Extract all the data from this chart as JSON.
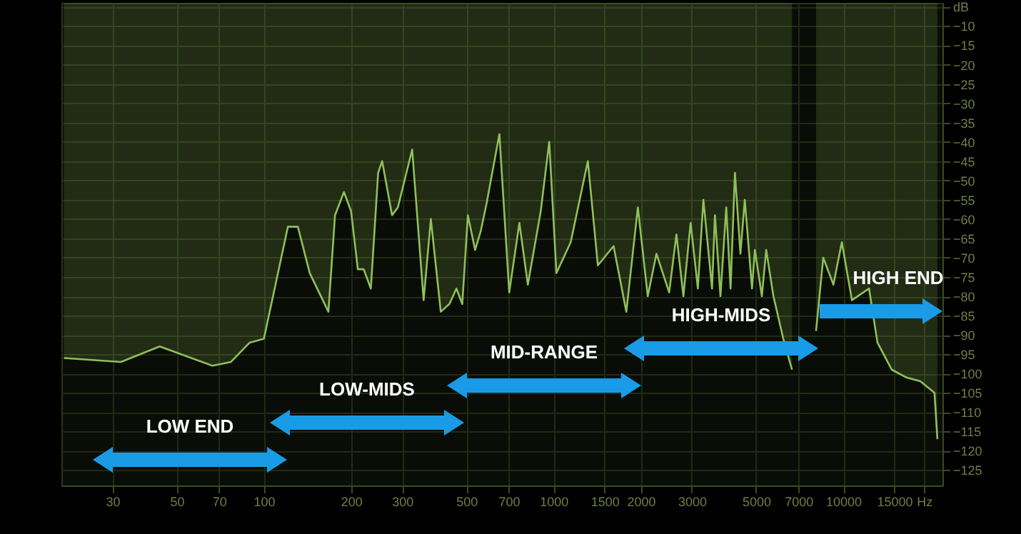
{
  "chart_data": {
    "type": "area",
    "x": [
      20.4,
      32.1,
      43.7,
      66.5,
      77,
      89.3,
      100,
      121,
      131,
      144,
      167,
      176,
      189,
      200,
      211,
      221,
      234,
      248,
      256,
      277,
      290,
      325,
      356,
      377,
      408,
      437,
      462,
      484,
      506,
      536,
      561,
      587,
      650,
      703,
      762,
      815,
      903,
      966,
      1023,
      1146,
      1313,
      1422,
      1611,
      1783,
      1954,
      2114,
      2265,
      2506,
      2655,
      2806,
      2972,
      3148,
      3289,
      3524,
      3606,
      3767,
      3945,
      4083,
      4227,
      4416,
      4571,
      4842,
      4955,
      5236,
      5420,
      5741,
      6209,
      6653,
      6950,
      8054,
      8531,
      9247,
      9886,
      10715,
      12274,
      13125,
      14700,
      16480,
      18450,
      20650,
      21130
    ],
    "series": [
      {
        "color": "#8fbf5a",
        "values": [
          -96,
          -97,
          -93,
          -98,
          -97,
          -92,
          -91,
          -62,
          -62,
          -74,
          -84,
          -59,
          -53,
          -58,
          -73,
          -73,
          -78,
          -48,
          -45,
          -59,
          -57,
          -42,
          -81,
          -60,
          -84,
          -82,
          -78,
          -82,
          -59,
          -68,
          -63,
          -56,
          -38,
          -79,
          -61,
          -77,
          -58,
          -40,
          -74,
          -66,
          -45,
          -72,
          -67,
          -84,
          -57,
          -80,
          -69,
          -79,
          -64,
          -80,
          -61,
          -78,
          -55,
          -78,
          -59,
          -80,
          -57,
          -78,
          -48,
          -69,
          -55,
          -78,
          -68,
          -80,
          -68,
          -80,
          -91,
          -99,
          null,
          -89,
          -70,
          -77,
          -66,
          -81,
          -78,
          -92,
          -99,
          -101,
          -102,
          -105,
          -117
        ]
      }
    ],
    "xlim": [
      20,
      22000
    ],
    "xticks": [
      30,
      50,
      70,
      100,
      200,
      300,
      500,
      700,
      1000,
      1500,
      2000,
      3000,
      5000,
      7000,
      10000,
      15000,
      {
        "value": 19000,
        "label": "Hz"
      }
    ],
    "ylim": [
      -129,
      -4
    ],
    "yticks": [
      {
        "value": -5,
        "label": "dB"
      },
      -10,
      -15,
      -20,
      -25,
      -30,
      -35,
      -40,
      -45,
      -50,
      -55,
      -60,
      -65,
      -70,
      -75,
      -80,
      -85,
      -90,
      -95,
      -100,
      -105,
      -110,
      -115,
      -120,
      -125
    ],
    "grid": true,
    "log": "x",
    "annotations": [
      "LOW END",
      "LOW-MIDS",
      "MID-RANGE",
      "HIGH-MIDS",
      "HIGH END"
    ]
  }
}
